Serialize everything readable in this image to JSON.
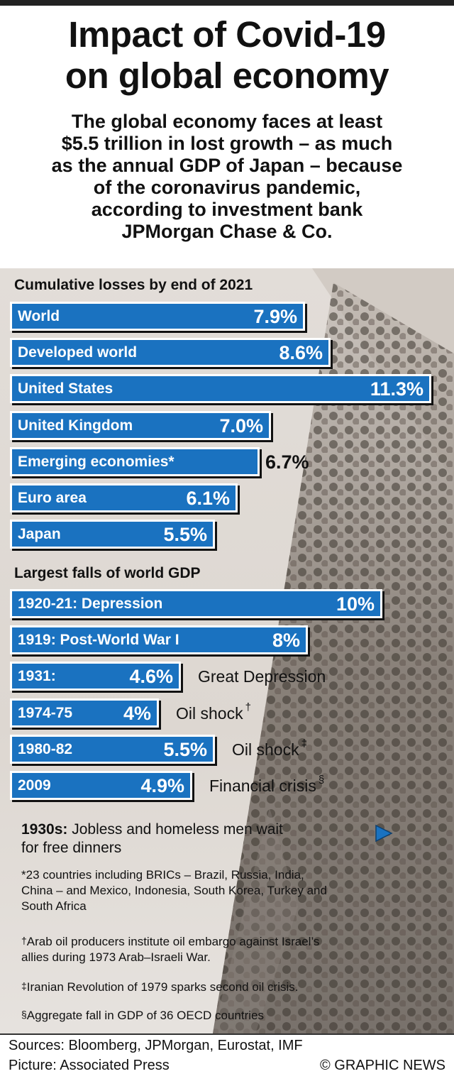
{
  "header": {
    "title_line1": "Impact of Covid-19",
    "title_line2": "on global economy",
    "subtitle_lines": [
      "The global economy faces at least",
      "$5.5 trillion in lost growth – as much",
      "as the annual GDP of Japan – because",
      "of the coronavirus pandemic,",
      "according to investment bank",
      "JPMorgan Chase & Co."
    ]
  },
  "colors": {
    "bar": "#1a72c0",
    "text": "#111111",
    "photo_tint": "#ddd7d1"
  },
  "chart_data": [
    {
      "type": "bar",
      "orientation": "horizontal",
      "title": "Cumulative losses by end of 2021",
      "unit": "%",
      "categories": [
        "World",
        "Developed world",
        "United States",
        "United Kingdom",
        "Emerging economies*",
        "Euro area",
        "Japan"
      ],
      "values": [
        7.9,
        8.6,
        11.3,
        7.0,
        6.7,
        6.1,
        5.5
      ],
      "value_labels": [
        "7.9%",
        "8.6%",
        "11.3%",
        "7.0%",
        "6.7%",
        "6.1%",
        "5.5%"
      ]
    },
    {
      "type": "bar",
      "orientation": "horizontal",
      "title": "Largest falls of world GDP",
      "unit": "%",
      "categories": [
        "1920-21: Depression",
        "1919: Post-World War I",
        "1931:",
        "1974-75",
        "1980-82",
        "2009"
      ],
      "values": [
        10,
        8,
        4.6,
        4,
        5.5,
        4.9
      ],
      "value_labels": [
        "10%",
        "8%",
        "4.6%",
        "4%",
        "5.5%",
        "4.9%"
      ],
      "events": [
        "",
        "",
        "Great Depression",
        "Oil shock",
        "Oil shock",
        "Financial crisis"
      ],
      "event_marks": [
        "",
        "",
        "",
        "†",
        "‡",
        "§"
      ]
    }
  ],
  "caption": {
    "bold": "1930s:",
    "line1": " Jobless and homeless men wait",
    "line2": "for free dinners"
  },
  "footnotes": {
    "star_lines": [
      "*23 countries including BRICs – Brazil, Russia, India,",
      "China – and Mexico, Indonesia, South Korea, Turkey and",
      "South Africa"
    ],
    "dagger_mark": "†",
    "dagger_lines": [
      "Arab oil producers institute oil embargo against Israel’s",
      "allies during 1973 Arab–Israeli War."
    ],
    "ddagger_mark": "‡",
    "ddagger_text": "Iranian Revolution of 1979 sparks second oil crisis.",
    "section_mark": "§",
    "section_text": "Aggregate fall in GDP of 36 OECD countries"
  },
  "footer": {
    "sources": "Sources: Bloomberg, JPMorgan, Eurostat, IMF",
    "picture": "Picture: Associated Press",
    "credit": "© GRAPHIC NEWS"
  }
}
